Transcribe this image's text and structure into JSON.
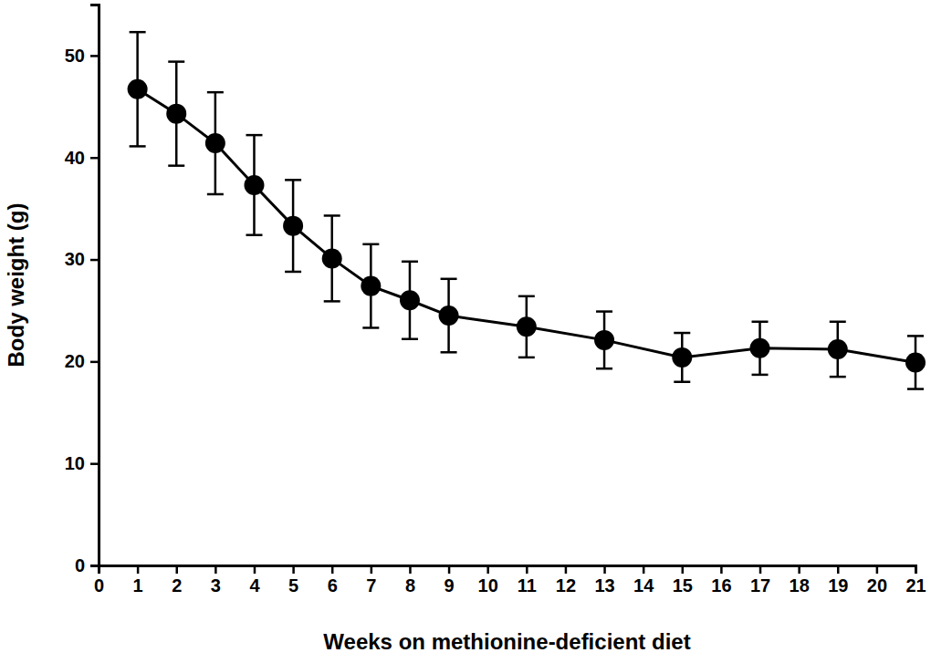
{
  "chart_data": {
    "type": "line",
    "x_label": "Weeks on methionine-deficient diet",
    "y_label": "Body weight (g)",
    "x": [
      1,
      2,
      3,
      4,
      5,
      6,
      7,
      8,
      9,
      11,
      13,
      15,
      17,
      19,
      21
    ],
    "values": [
      46.7,
      44.3,
      41.4,
      37.3,
      33.3,
      30.1,
      27.4,
      26.0,
      24.5,
      23.4,
      22.1,
      20.4,
      21.3,
      21.2,
      19.9
    ],
    "errors": [
      5.6,
      5.1,
      5.0,
      4.9,
      4.5,
      4.2,
      4.1,
      3.8,
      3.6,
      3.0,
      2.8,
      2.4,
      2.6,
      2.7,
      2.6
    ],
    "color": "#000000",
    "marker": "circle",
    "line_style": "solid",
    "xlim": [
      0,
      21
    ],
    "xticks": [
      0,
      1,
      2,
      3,
      4,
      5,
      6,
      7,
      8,
      9,
      10,
      11,
      12,
      13,
      14,
      15,
      16,
      17,
      18,
      19,
      20,
      21
    ],
    "ylim": [
      0,
      55
    ],
    "yticks": [
      0,
      10,
      20,
      30,
      40,
      50
    ],
    "grid": false
  }
}
